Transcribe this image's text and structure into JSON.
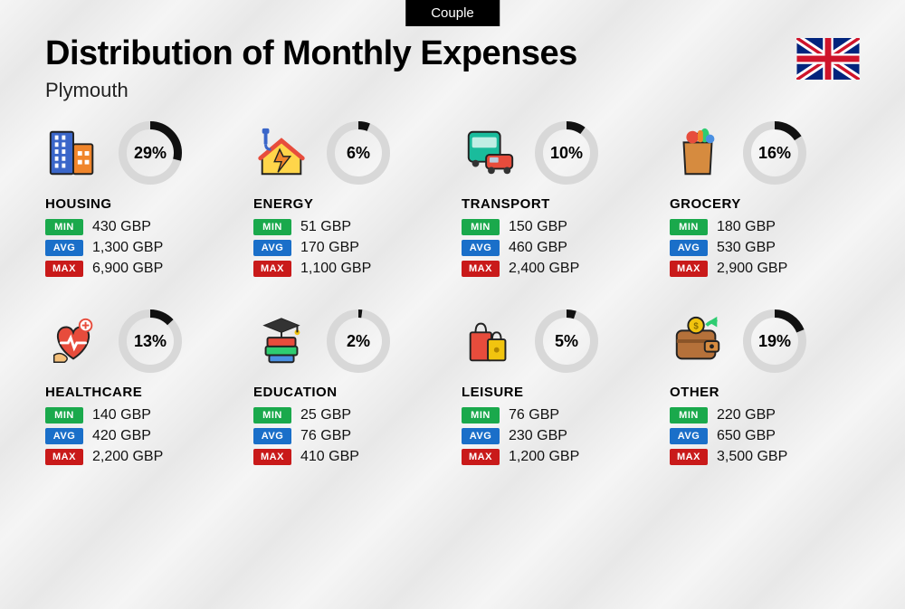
{
  "badge": "Couple",
  "title": "Distribution of Monthly Expenses",
  "subtitle": "Plymouth",
  "ring": {
    "size": 72,
    "stroke_width": 9,
    "track_color": "#d8d8d8",
    "progress_color": "#111111"
  },
  "stat_colors": {
    "min": "#1aa94c",
    "avg": "#1a6fc9",
    "max": "#c91a1a"
  },
  "labels": {
    "min": "MIN",
    "avg": "AVG",
    "max": "MAX"
  },
  "currency": "GBP",
  "categories": [
    {
      "key": "housing",
      "name": "HOUSING",
      "pct": 29,
      "min": "430",
      "avg": "1,300",
      "max": "6,900",
      "icon": "buildings"
    },
    {
      "key": "energy",
      "name": "ENERGY",
      "pct": 6,
      "min": "51",
      "avg": "170",
      "max": "1,100",
      "icon": "energy-house"
    },
    {
      "key": "transport",
      "name": "TRANSPORT",
      "pct": 10,
      "min": "150",
      "avg": "460",
      "max": "2,400",
      "icon": "bus-car"
    },
    {
      "key": "grocery",
      "name": "GROCERY",
      "pct": 16,
      "min": "180",
      "avg": "530",
      "max": "2,900",
      "icon": "grocery-bag"
    },
    {
      "key": "healthcare",
      "name": "HEALTHCARE",
      "pct": 13,
      "min": "140",
      "avg": "420",
      "max": "2,200",
      "icon": "health-heart"
    },
    {
      "key": "education",
      "name": "EDUCATION",
      "pct": 2,
      "min": "25",
      "avg": "76",
      "max": "410",
      "icon": "grad-books"
    },
    {
      "key": "leisure",
      "name": "LEISURE",
      "pct": 5,
      "min": "76",
      "avg": "230",
      "max": "1,200",
      "icon": "shopping-bags"
    },
    {
      "key": "other",
      "name": "OTHER",
      "pct": 19,
      "min": "220",
      "avg": "650",
      "max": "3,500",
      "icon": "wallet"
    }
  ]
}
